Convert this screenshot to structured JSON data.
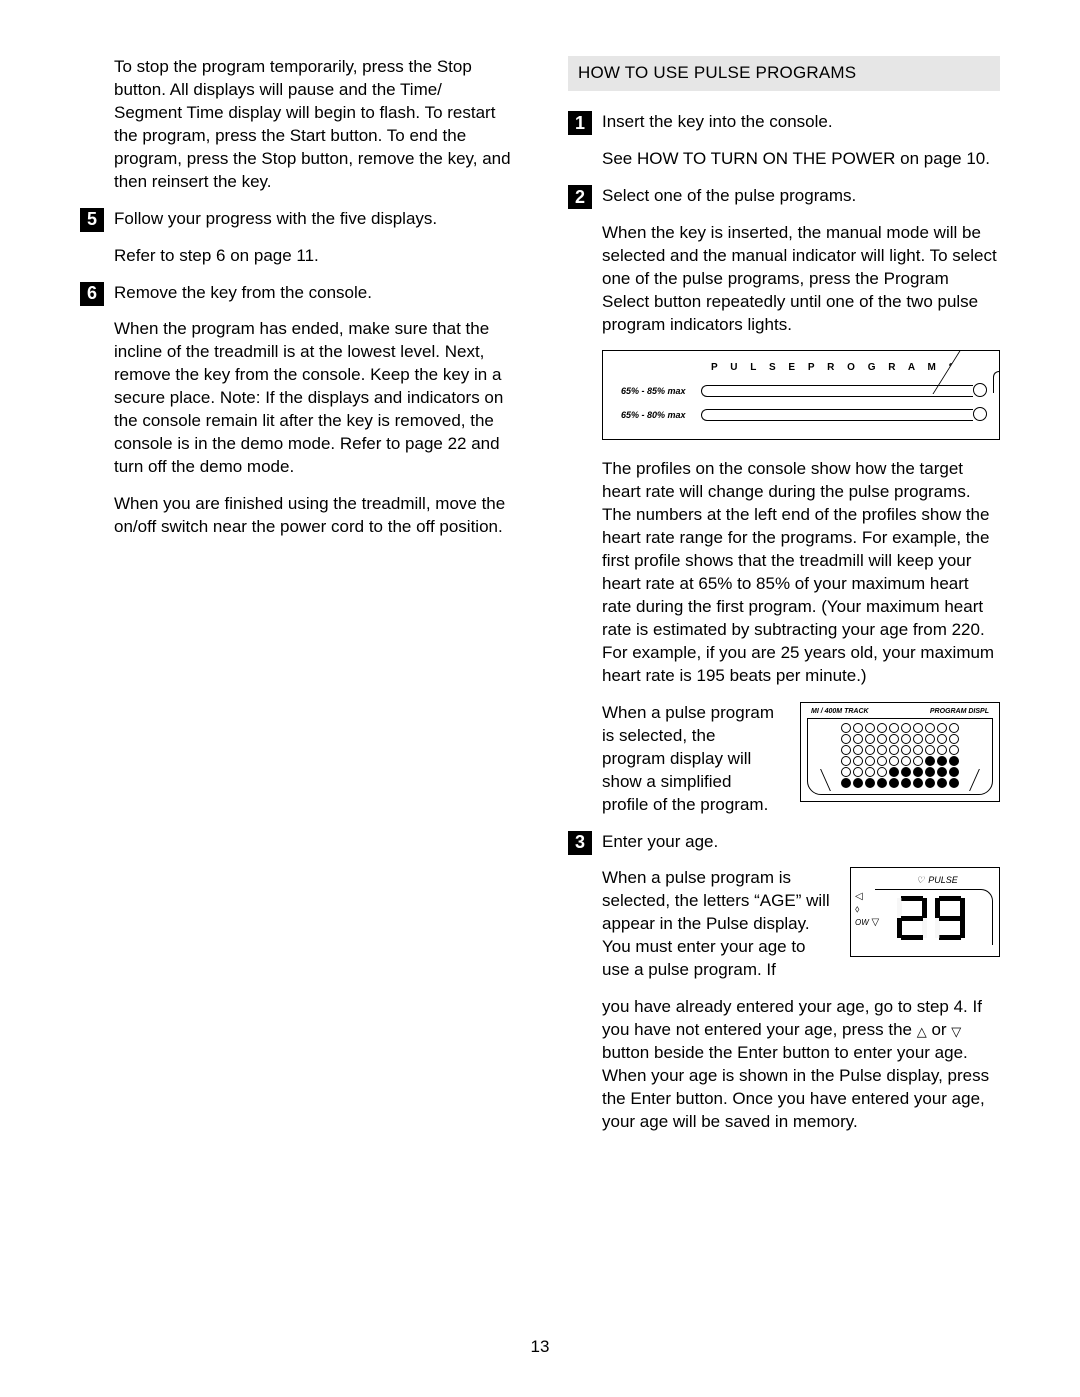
{
  "pageNumber": "13",
  "left": {
    "intro": "To stop the program temporarily, press the Stop button. All displays will pause and the Time/ Segment Time display will begin to flash. To restart the program, press the Start button. To end the program, press the Stop button, remove the key, and then reinsert the key.",
    "step5": {
      "num": "5",
      "title": "Follow your progress with the five displays.",
      "p1": "Refer to step 6 on page 11."
    },
    "step6": {
      "num": "6",
      "title": "Remove the key from the console.",
      "p1": "When the program has ended, make sure that the incline of the treadmill is at the lowest level.  Next, remove the key from the console. Keep the key in a secure place. Note: If the displays and indicators on the console remain lit after the key is removed, the console is in the  demo  mode. Refer to page 22 and turn off the demo mode.",
      "p2": "When you are finished using the treadmill, move the on/off switch near the power cord to the off position."
    }
  },
  "right": {
    "header": "HOW TO USE PULSE PROGRAMS",
    "step1": {
      "num": "1",
      "title": "Insert the key into the console.",
      "p1": "See HOW TO TURN ON THE POWER on page 10."
    },
    "step2": {
      "num": "2",
      "title": "Select one of the pulse programs.",
      "p1": "When the key is inserted, the manual mode will be selected and the manual indicator will light. To select one of the pulse programs, press the Program Select button repeatedly until one of the two pulse program indicators lights.",
      "diagram": {
        "title": "P U L S E   P R O G R A M S",
        "row1": "65% - 85% max",
        "row2": "65% - 80% max"
      },
      "p2": "The profiles on the console show how the target heart rate will change during the pulse programs. The numbers at the left end of the profiles show the heart rate range for the programs. For example, the first profile shows that the treadmill will keep your heart rate at 65% to 85% of your maximum heart rate during the first program. (Your maximum heart rate is estimated by subtracting your age from 220. For example, if you are 25 years old, your maximum heart rate is 195 beats per minute.)",
      "p3": "When a pulse program is selected, the program display will show a simplified profile of the program.",
      "ledDisplay": {
        "labelLeft": "MI  / 400M TRACK",
        "labelRight": "PROGRAM DISPL",
        "rows": 6,
        "cols": 10,
        "lit": [
          [
            3,
            7
          ],
          [
            3,
            8
          ],
          [
            3,
            9
          ],
          [
            4,
            4
          ],
          [
            4,
            5
          ],
          [
            4,
            6
          ],
          [
            4,
            7
          ],
          [
            4,
            8
          ],
          [
            4,
            9
          ],
          [
            5,
            0
          ],
          [
            5,
            1
          ],
          [
            5,
            2
          ],
          [
            5,
            3
          ],
          [
            5,
            4
          ],
          [
            5,
            5
          ],
          [
            5,
            6
          ],
          [
            5,
            7
          ],
          [
            5,
            8
          ],
          [
            5,
            9
          ]
        ]
      }
    },
    "step3": {
      "num": "3",
      "title": "Enter your age.",
      "p1_a": "When a pulse program is selected, the letters “AGE” will appear in the Pulse display. You must enter your age to use a pulse program. If",
      "p1_b": "you have already entered your age, go to step 4. If you have not entered your age, press the ",
      "p1_c": " or ",
      "p1_d": " button beside the Enter button to enter your age. When your age is shown in the Pulse display, press the Enter button. Once you have entered your age, your age will be saved in memory.",
      "pulseDisplay": {
        "label": "PULSE",
        "sideLabel": "OW",
        "digit1": "2",
        "digit2": "9",
        "segments": {
          "2": [
            "a",
            "b",
            "g",
            "e",
            "d"
          ],
          "9": [
            "a",
            "b",
            "c",
            "d",
            "f",
            "g"
          ]
        }
      }
    }
  }
}
